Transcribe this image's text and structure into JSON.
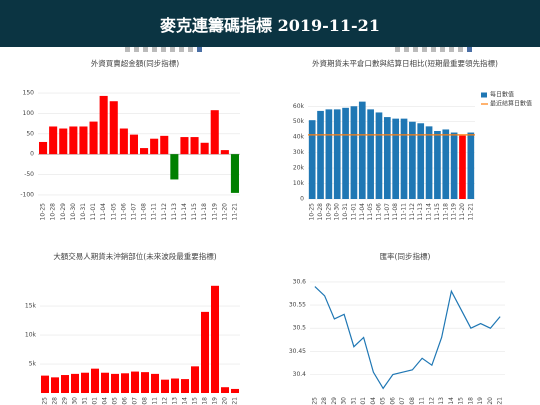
{
  "header": {
    "title": "麥克連籌碼指標 2019-11-21"
  },
  "chart_data": [
    {
      "type": "bar",
      "title": "外資買賣超金額(同步指標)",
      "categories": [
        "10-25",
        "10-28",
        "10-29",
        "10-30",
        "10-31",
        "11-01",
        "11-04",
        "11-05",
        "11-06",
        "11-07",
        "11-08",
        "11-11",
        "11-12",
        "11-13",
        "11-14",
        "11-15",
        "11-18",
        "11-19",
        "11-20",
        "11-21"
      ],
      "series": [
        {
          "color": "#ff0000",
          "negative_color": "#008000",
          "values": [
            30,
            68,
            63,
            68,
            68,
            80,
            143,
            130,
            63,
            48,
            15,
            38,
            45,
            -62,
            42,
            42,
            28,
            108,
            10,
            -95
          ]
        }
      ],
      "ylim": [
        -110,
        160
      ],
      "yticks": [
        -100,
        -50,
        0,
        50,
        100,
        150
      ],
      "grid": true
    },
    {
      "type": "bar",
      "title": "外資期貨未平倉口數與結算日相比(短期最重要領先指標)",
      "categories": [
        "10-25",
        "10-28",
        "10-29",
        "10-30",
        "10-31",
        "11-01",
        "11-04",
        "11-05",
        "11-06",
        "11-07",
        "11-08",
        "11-11",
        "11-12",
        "11-13",
        "11-14",
        "11-15",
        "11-18",
        "11-19",
        "11-20",
        "11-21"
      ],
      "series": [
        {
          "name": "每日數值",
          "color": "#1f77b4",
          "colors": [
            "#1f77b4",
            "#1f77b4",
            "#1f77b4",
            "#1f77b4",
            "#1f77b4",
            "#1f77b4",
            "#1f77b4",
            "#1f77b4",
            "#1f77b4",
            "#1f77b4",
            "#1f77b4",
            "#1f77b4",
            "#1f77b4",
            "#1f77b4",
            "#1f77b4",
            "#1f77b4",
            "#1f77b4",
            "#1f77b4",
            "#ff0000",
            "#1f77b4"
          ],
          "values": [
            51000,
            57000,
            58000,
            58000,
            59000,
            60000,
            63000,
            58000,
            56000,
            53000,
            52000,
            52000,
            50000,
            49000,
            47000,
            44000,
            45000,
            43000,
            41000,
            43000
          ]
        }
      ],
      "reference_lines": [
        {
          "name": "最近結算日數值",
          "color": "#ff7f0e",
          "value": 41500
        }
      ],
      "ylim": [
        0,
        66000
      ],
      "yticks": [
        {
          "value": 0,
          "label": "0"
        },
        {
          "value": 10000,
          "label": "10k"
        },
        {
          "value": 20000,
          "label": "20k"
        },
        {
          "value": 30000,
          "label": "30k"
        },
        {
          "value": 40000,
          "label": "40k"
        },
        {
          "value": 50000,
          "label": "50k"
        },
        {
          "value": 60000,
          "label": "60k"
        }
      ],
      "grid": true,
      "legend": "top-right"
    },
    {
      "type": "bar",
      "title": "大額交易人期貨未沖銷部位(未來波段最重要指標)",
      "categories": [
        "10-25",
        "10-28",
        "10-29",
        "10-30",
        "10-31",
        "11-01",
        "11-04",
        "11-05",
        "11-06",
        "11-07",
        "11-08",
        "11-11",
        "11-12",
        "11-13",
        "11-14",
        "11-15",
        "11-18",
        "11-19",
        "11-20",
        "11-21"
      ],
      "series": [
        {
          "color": "#ff0000",
          "values": [
            3000,
            2700,
            3100,
            3300,
            3500,
            4200,
            3500,
            3300,
            3400,
            3700,
            3600,
            3300,
            2300,
            2500,
            2400,
            4600,
            14000,
            18500,
            1000,
            700
          ]
        }
      ],
      "ylim": [
        0,
        19500
      ],
      "yticks": [
        {
          "value": 5000,
          "label": "5k"
        },
        {
          "value": 10000,
          "label": "10k"
        },
        {
          "value": 15000,
          "label": "15k"
        }
      ],
      "grid": true
    },
    {
      "type": "line",
      "title": "匯率(同步指標)",
      "categories": [
        "10-25",
        "10-28",
        "10-29",
        "10-30",
        "10-31",
        "11-01",
        "11-04",
        "11-05",
        "11-06",
        "11-07",
        "11-08",
        "11-11",
        "11-12",
        "11-13",
        "11-14",
        "11-15",
        "11-18",
        "11-19",
        "11-20",
        "11-21"
      ],
      "series": [
        {
          "color": "#1f77b4",
          "values": [
            30.59,
            30.57,
            30.52,
            30.53,
            30.46,
            30.48,
            30.405,
            30.37,
            30.4,
            30.405,
            30.41,
            30.435,
            30.42,
            30.48,
            30.58,
            30.54,
            30.5,
            30.51,
            30.5,
            30.525
          ]
        }
      ],
      "ylim": [
        30.36,
        30.615
      ],
      "yticks": [
        30.4,
        30.45,
        30.5,
        30.55,
        30.6
      ],
      "grid": true
    }
  ]
}
